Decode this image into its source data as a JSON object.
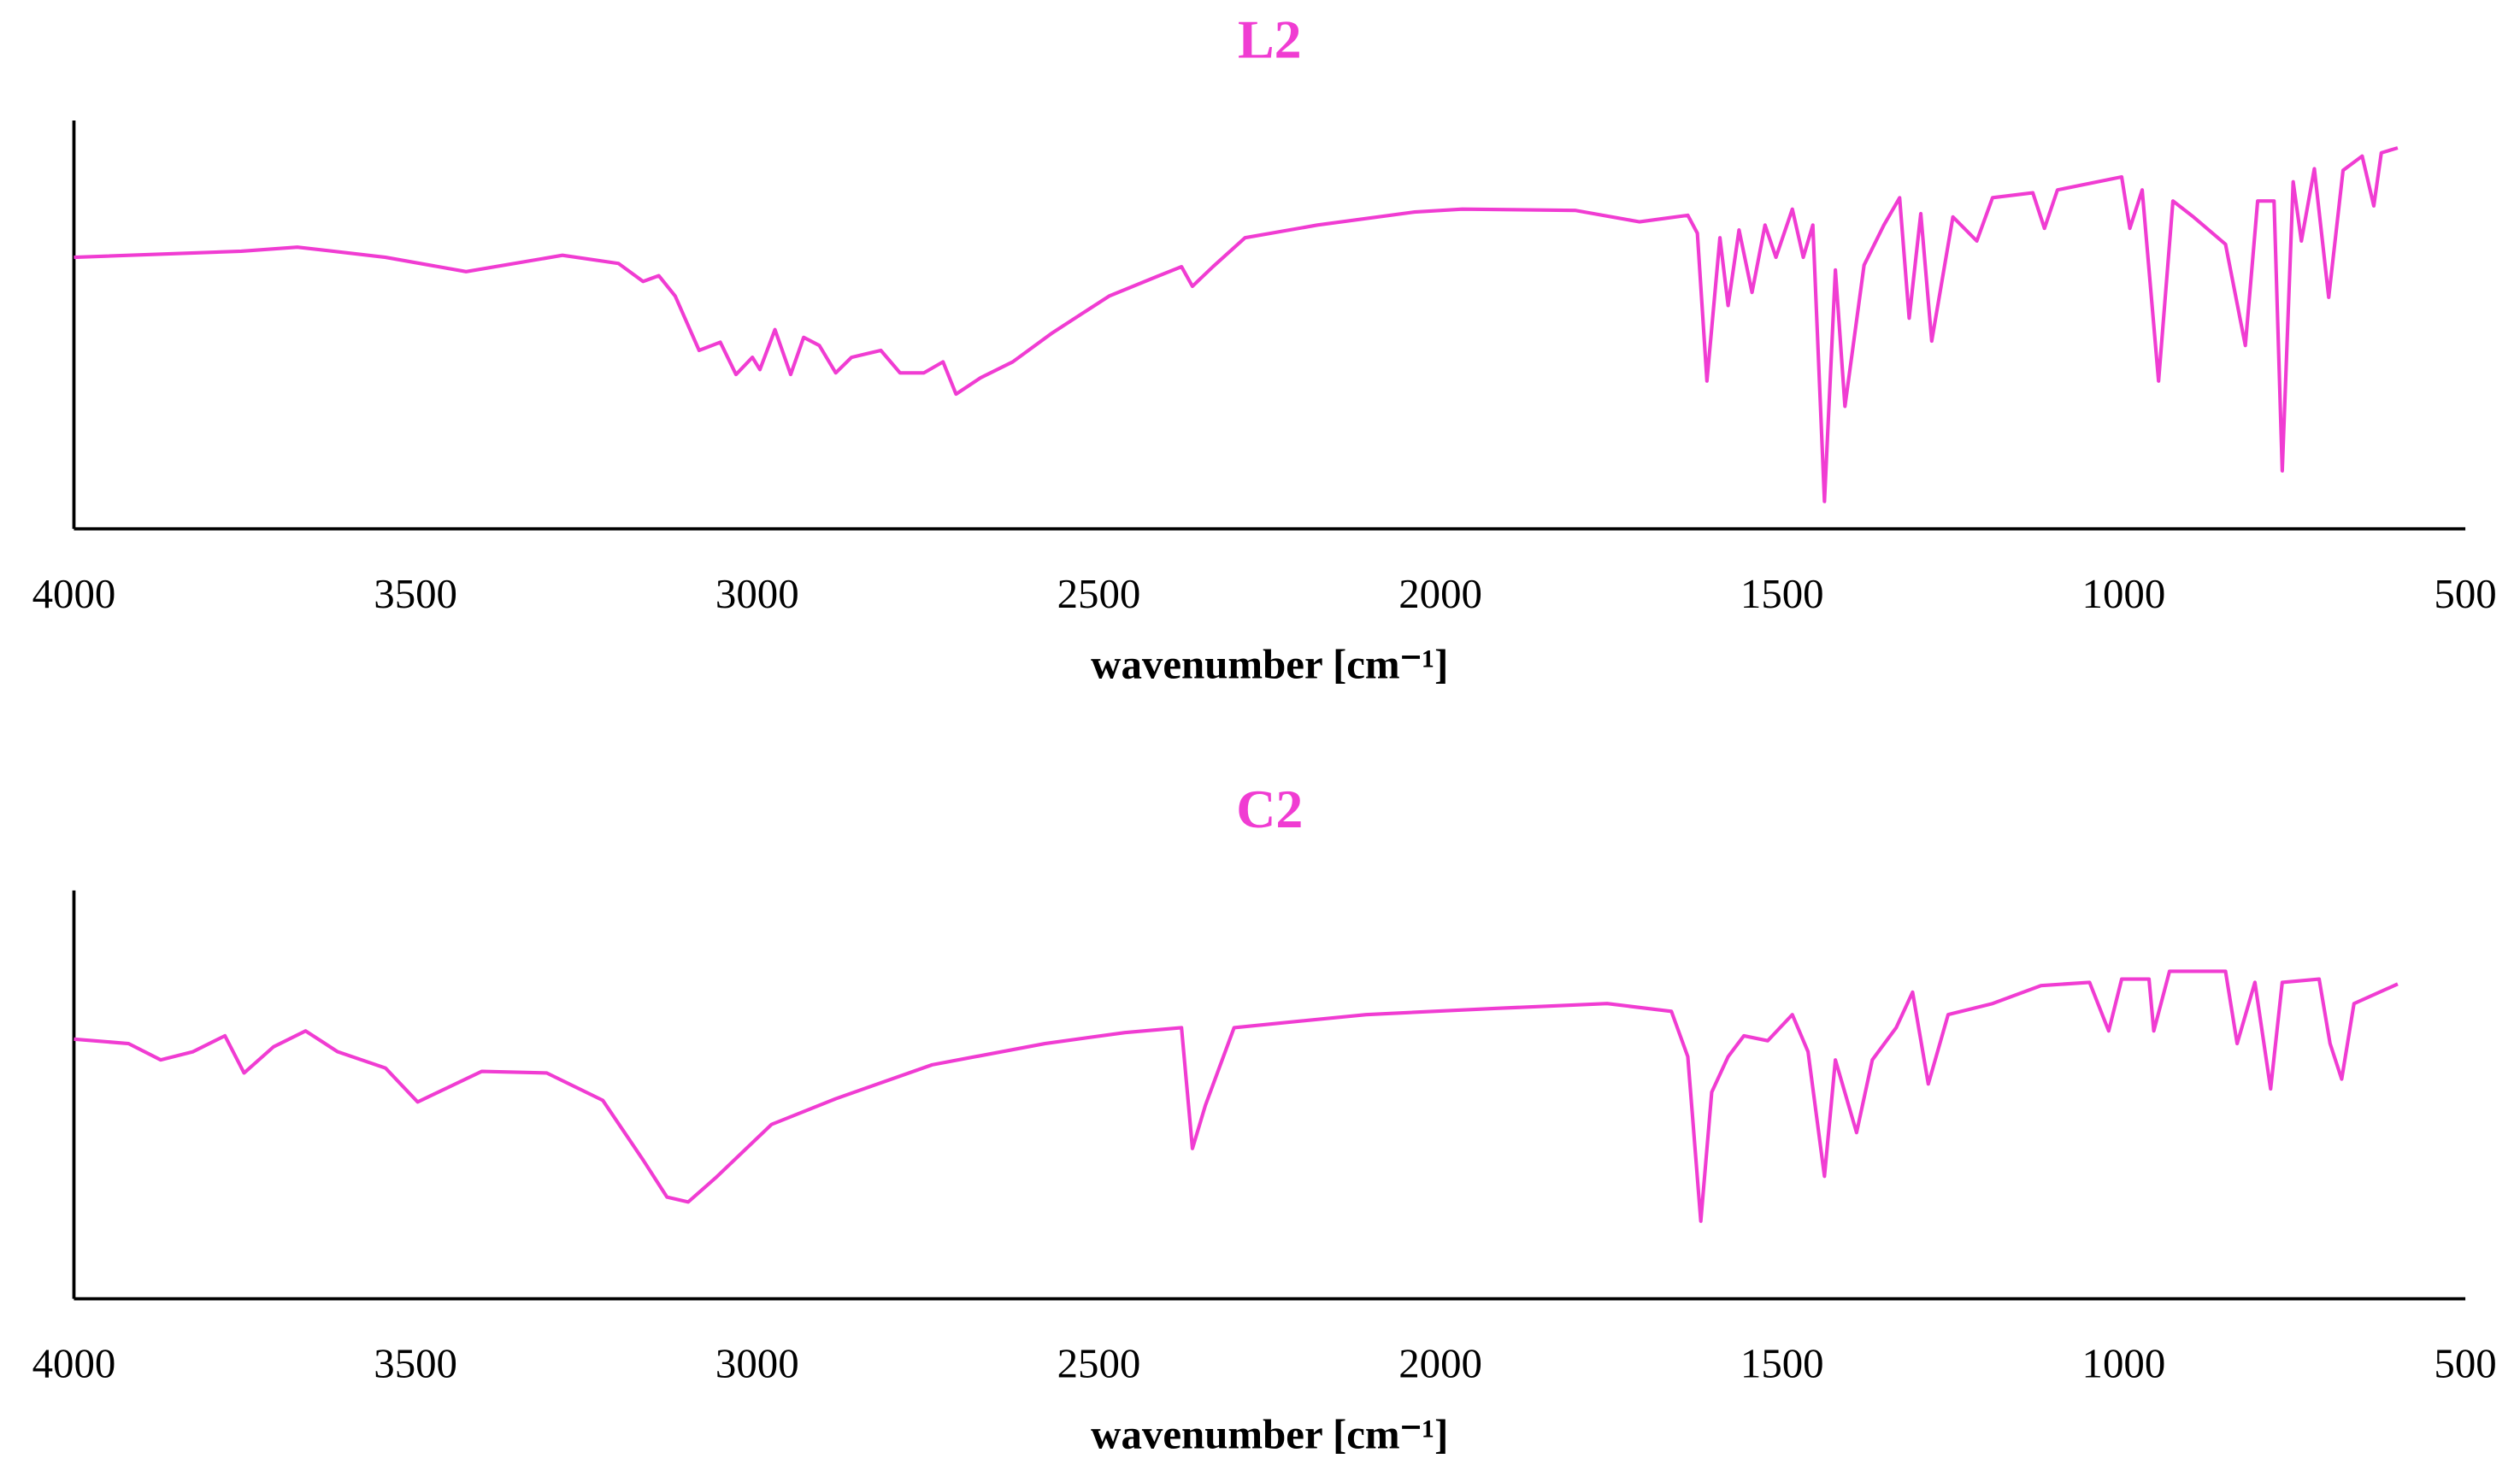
{
  "chart_data": [
    {
      "type": "line",
      "title": "L2",
      "x_label": "wavenumber [cm⁻¹]",
      "color": "#f03cd2",
      "xlim": [
        4000,
        500
      ],
      "xticks": [
        4000,
        3500,
        3000,
        2500,
        2000,
        1500,
        1000,
        500
      ],
      "ylim": [
        0,
        100
      ],
      "grid": false,
      "x": [
        4000,
        3755,
        3673,
        3544,
        3426,
        3285,
        3203,
        3167,
        3144,
        3120,
        3085,
        3054,
        3031,
        3007,
        2996,
        2974,
        2951,
        2932,
        2909,
        2885,
        2862,
        2819,
        2791,
        2756,
        2728,
        2709,
        2673,
        2626,
        2568,
        2485,
        2415,
        2379,
        2363,
        2333,
        2286,
        2180,
        2038,
        1968,
        1803,
        1709,
        1638,
        1624,
        1610,
        1591,
        1579,
        1563,
        1544,
        1525,
        1509,
        1485,
        1469,
        1455,
        1438,
        1422,
        1408,
        1380,
        1351,
        1328,
        1314,
        1297,
        1281,
        1250,
        1215,
        1192,
        1133,
        1116,
        1097,
        1003,
        991,
        973,
        949,
        928,
        898,
        851,
        822,
        804,
        780,
        768,
        752,
        740,
        721,
        700,
        679,
        651,
        634,
        623,
        599
      ],
      "values": [
        66.5,
        68,
        69,
        66.5,
        63,
        67,
        65,
        60.6,
        62,
        57,
        43.7,
        45.7,
        37.8,
        42,
        39,
        48.8,
        37.8,
        46.9,
        44.9,
        38.2,
        42,
        43.7,
        38.2,
        38.2,
        40.9,
        33,
        37,
        40.9,
        48,
        57,
        61.8,
        64.2,
        59.4,
        64.2,
        71.3,
        74.4,
        77.6,
        78.3,
        78,
        75.2,
        76.8,
        72.4,
        36.2,
        71.3,
        54.7,
        73.2,
        57.9,
        74.4,
        66.5,
        78.3,
        66.5,
        74.4,
        6.7,
        63.4,
        30,
        64.6,
        74.4,
        81.1,
        51.6,
        77.2,
        46,
        76.4,
        70.5,
        81.1,
        82.3,
        73.6,
        83,
        86.2,
        73.6,
        83,
        36.2,
        80.3,
        76.4,
        69.7,
        44.9,
        80.3,
        80.3,
        14.2,
        85,
        70.5,
        88.2,
        56.7,
        87.8,
        91.3,
        79.1,
        92.1,
        93.3
      ]
    },
    {
      "type": "line",
      "title": "C2",
      "x_label": "wavenumber [cm⁻¹]",
      "color": "#f03cd2",
      "xlim": [
        4000,
        500
      ],
      "xticks": [
        4000,
        3500,
        3000,
        2500,
        2000,
        1500,
        1000,
        500
      ],
      "ylim": [
        0,
        100
      ],
      "grid": false,
      "x": [
        4000,
        3920,
        3873,
        3826,
        3779,
        3751,
        3708,
        3661,
        3614,
        3544,
        3497,
        3403,
        3308,
        3226,
        3167,
        3132,
        3101,
        3061,
        2979,
        2885,
        2744,
        2579,
        2462,
        2379,
        2363,
        2344,
        2302,
        2109,
        1921,
        1756,
        1662,
        1638,
        1619,
        1603,
        1579,
        1556,
        1521,
        1485,
        1462,
        1438,
        1422,
        1391,
        1368,
        1333,
        1309,
        1286,
        1257,
        1192,
        1121,
        1050,
        1022,
        1003,
        963,
        956,
        933,
        851,
        834,
        808,
        785,
        768,
        714,
        698,
        681,
        663,
        599
      ],
      "values": [
        63.6,
        62.5,
        58.5,
        60.5,
        64.4,
        55.3,
        61.7,
        65.6,
        60.5,
        56.5,
        48.2,
        55.7,
        55.3,
        48.6,
        34,
        24.9,
        23.7,
        29.6,
        42.7,
        49,
        57.3,
        62.5,
        65.2,
        66.4,
        36.8,
        47.4,
        66.4,
        69.6,
        71.1,
        72.3,
        70.4,
        59.3,
        19,
        50.6,
        59.3,
        64.4,
        63.2,
        69.6,
        60.5,
        30,
        58.5,
        40.7,
        58.5,
        66.4,
        75.1,
        52.6,
        69.6,
        72.3,
        76.7,
        77.5,
        65.6,
        78.3,
        78.3,
        65.6,
        80.2,
        80.2,
        62.5,
        77.5,
        51.4,
        77.5,
        78.3,
        62.5,
        53.8,
        72.3,
        77.1
      ]
    }
  ]
}
